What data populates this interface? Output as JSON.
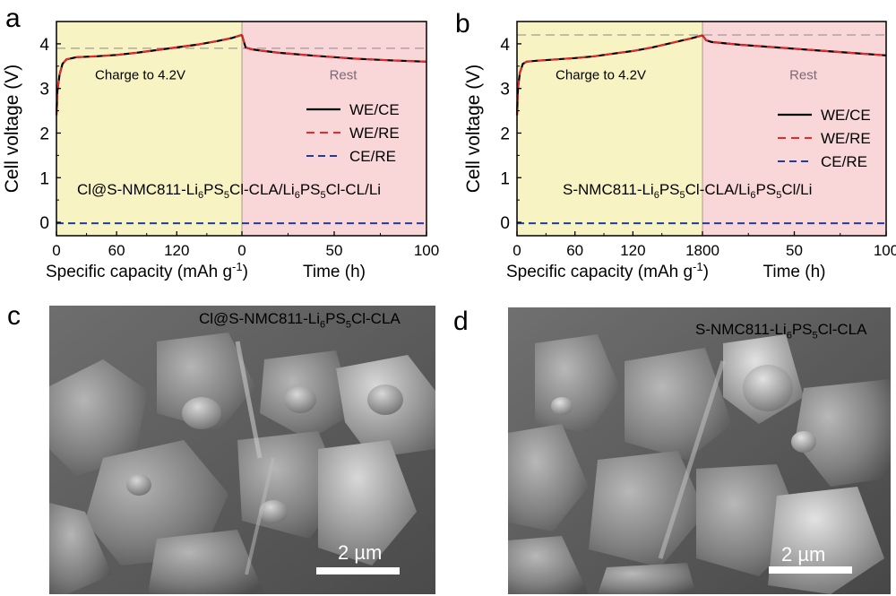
{
  "figure": {
    "panels": [
      {
        "letter": "a"
      },
      {
        "letter": "b"
      },
      {
        "letter": "c",
        "sem_label_main": "Cl@S-NMC811-Li",
        "sem_label_sub1": "6",
        "sem_label_mid": "PS",
        "sem_label_sub2": "5",
        "sem_label_end": "Cl-CLA",
        "scale_bar": "2 µm"
      },
      {
        "letter": "d",
        "sem_label_main": "S-NMC811-Li",
        "sem_label_sub1": "6",
        "sem_label_mid": "PS",
        "sem_label_sub2": "5",
        "sem_label_end": "Cl-CLA",
        "scale_bar": "2 µm"
      }
    ]
  },
  "colors": {
    "charge_bg": "#f7f3c2",
    "rest_bg": "#f9d6d8",
    "we_ce": "#000000",
    "we_re": "#e8282b",
    "ce_re": "#1f3d9e",
    "ref_line": "#8a8a8a"
  },
  "chart_data": [
    {
      "type": "line",
      "ylabel": "Cell voltage (V)",
      "ylim": [
        -0.3,
        4.5
      ],
      "yticks": [
        "0",
        "1",
        "2",
        "3",
        "4"
      ],
      "xlabel_left": "Specific capacity (mAh g",
      "xlabel_left_sup": "-1",
      "xlabel_left_end": ")",
      "xlabel_right": "Time (h)",
      "xticks_left": [
        "0",
        "60",
        "120",
        "0"
      ],
      "xticks_right": [
        "50",
        "100"
      ],
      "xlim_left": [
        0,
        185
      ],
      "xlim_right": [
        0,
        100
      ],
      "region_labels": [
        "Charge to 4.2V",
        "Rest"
      ],
      "legend": [
        "WE/CE",
        "WE/RE",
        "CE/RE"
      ],
      "legend_position": "right",
      "cell_label_parts": [
        "Cl@S-NMC811-Li",
        "6",
        "PS",
        "5",
        "Cl-CLA/Li",
        "6",
        "PS",
        "5",
        "Cl-CL/Li"
      ],
      "reference_voltage": 3.9,
      "series": [
        {
          "name": "WE/CE",
          "charge_x": [
            0,
            1,
            3,
            6,
            10,
            20,
            40,
            60,
            80,
            100,
            120,
            140,
            160,
            175,
            185
          ],
          "charge_y": [
            2.4,
            2.95,
            3.3,
            3.55,
            3.65,
            3.7,
            3.72,
            3.75,
            3.8,
            3.86,
            3.92,
            3.98,
            4.06,
            4.13,
            4.2
          ],
          "rest_x": [
            0,
            2,
            5,
            10,
            20,
            40,
            60,
            80,
            100
          ],
          "rest_y": [
            4.2,
            3.92,
            3.88,
            3.85,
            3.8,
            3.73,
            3.67,
            3.63,
            3.6
          ]
        },
        {
          "name": "WE/RE",
          "charge_x": [
            0,
            1,
            3,
            6,
            10,
            20,
            40,
            60,
            80,
            100,
            120,
            140,
            160,
            175,
            185
          ],
          "charge_y": [
            2.4,
            2.95,
            3.3,
            3.55,
            3.65,
            3.7,
            3.72,
            3.75,
            3.8,
            3.86,
            3.92,
            3.98,
            4.06,
            4.13,
            4.2
          ],
          "rest_x": [
            0,
            2,
            5,
            10,
            20,
            40,
            60,
            80,
            100
          ],
          "rest_y": [
            4.2,
            3.92,
            3.88,
            3.85,
            3.8,
            3.73,
            3.67,
            3.63,
            3.6
          ]
        },
        {
          "name": "CE/RE",
          "charge_x": [
            0,
            185
          ],
          "charge_y": [
            -0.02,
            -0.02
          ],
          "rest_x": [
            0,
            100
          ],
          "rest_y": [
            -0.02,
            -0.02
          ]
        }
      ]
    },
    {
      "type": "line",
      "ylabel": "Cell voltage (V)",
      "ylim": [
        -0.3,
        4.5
      ],
      "yticks": [
        "0",
        "1",
        "2",
        "3",
        "4"
      ],
      "xlabel_left": "Specific capacity (mAh g",
      "xlabel_left_sup": "-1",
      "xlabel_left_end": ")",
      "xlabel_right": "Time (h)",
      "xticks_left": [
        "0",
        "60",
        "120",
        "1800"
      ],
      "xticks_right": [
        "50",
        "100"
      ],
      "xlim_left": [
        0,
        192
      ],
      "xlim_right": [
        0,
        100
      ],
      "region_labels": [
        "Charge to 4.2V",
        "Rest"
      ],
      "legend": [
        "WE/CE",
        "WE/RE",
        "CE/RE"
      ],
      "legend_position": "right",
      "cell_label_parts": [
        "S-NMC811-Li",
        "6",
        "PS",
        "5",
        "Cl-CLA/Li",
        "6",
        "PS",
        "5",
        "Cl/Li"
      ],
      "reference_voltage": 4.2,
      "series": [
        {
          "name": "WE/CE",
          "charge_x": [
            0,
            1,
            3,
            6,
            10,
            20,
            40,
            60,
            80,
            100,
            120,
            140,
            160,
            180,
            192
          ],
          "charge_y": [
            2.4,
            3.0,
            3.35,
            3.55,
            3.6,
            3.62,
            3.65,
            3.68,
            3.72,
            3.78,
            3.84,
            3.92,
            4.02,
            4.12,
            4.19
          ],
          "rest_x": [
            0,
            2,
            5,
            10,
            20,
            40,
            60,
            80,
            100
          ],
          "rest_y": [
            4.19,
            4.08,
            4.04,
            4.02,
            3.98,
            3.92,
            3.86,
            3.8,
            3.74
          ]
        },
        {
          "name": "WE/RE",
          "charge_x": [
            0,
            1,
            3,
            6,
            10,
            20,
            40,
            60,
            80,
            100,
            120,
            140,
            160,
            180,
            192
          ],
          "charge_y": [
            2.4,
            3.0,
            3.35,
            3.55,
            3.6,
            3.62,
            3.65,
            3.68,
            3.72,
            3.78,
            3.84,
            3.92,
            4.02,
            4.12,
            4.19
          ],
          "rest_x": [
            0,
            2,
            5,
            10,
            20,
            40,
            60,
            80,
            100
          ],
          "rest_y": [
            4.19,
            4.08,
            4.04,
            4.02,
            3.98,
            3.92,
            3.86,
            3.8,
            3.74
          ]
        },
        {
          "name": "CE/RE",
          "charge_x": [
            0,
            192
          ],
          "charge_y": [
            -0.02,
            -0.02
          ],
          "rest_x": [
            0,
            100
          ],
          "rest_y": [
            -0.02,
            -0.02
          ]
        }
      ]
    }
  ]
}
